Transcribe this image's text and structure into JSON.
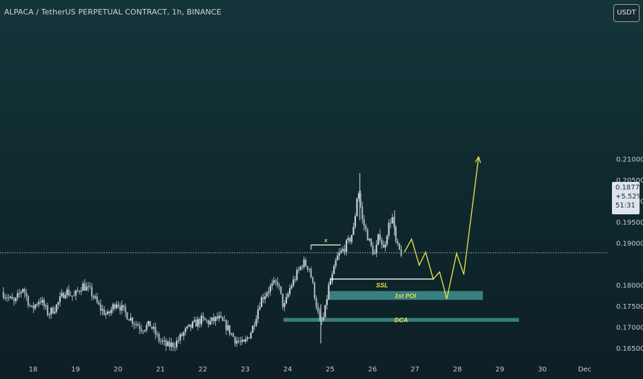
{
  "header": {
    "title": "ALPACA / TetherUS PERPETUAL CONTRACT, 1h, BINANCE",
    "currency_button": "USDT"
  },
  "price_label": {
    "price": "0.18775",
    "change": "+5.52%",
    "countdown": "51:31"
  },
  "colors": {
    "candle": "#c8d2de",
    "candle_wick": "#aeb8c4",
    "zone_fill": "#4aa3a0",
    "annotation": "#e8e04a",
    "level_line": "#ffffff",
    "axis_text": "#c5cad3"
  },
  "chart_data": {
    "type": "candlestick",
    "y_axis": {
      "ticks": [
        0.165,
        0.17,
        0.175,
        0.18,
        0.185,
        0.19,
        0.195,
        0.2,
        0.205,
        0.21
      ],
      "tick_labels": [
        "0.16500",
        "0.17000",
        "0.17500",
        "0.18000",
        "",
        "0.19000",
        "0.19500",
        "0.20000",
        "0.20500",
        "0.21000"
      ],
      "ylim": [
        0.1635,
        0.2145
      ]
    },
    "x_axis": {
      "ticks": [
        18,
        19,
        20,
        21,
        22,
        23,
        24,
        25,
        26,
        27,
        28,
        29,
        30,
        31
      ],
      "tick_labels": [
        "18",
        "19",
        "20",
        "21",
        "22",
        "23",
        "24",
        "25",
        "26",
        "27",
        "28",
        "29",
        "30",
        "Dec"
      ],
      "xlim": [
        17.3,
        32.3
      ]
    },
    "last_price": 0.18775,
    "price_path": [
      [
        17.3,
        0.1785
      ],
      [
        17.6,
        0.1758
      ],
      [
        17.8,
        0.1795
      ],
      [
        18.0,
        0.1742
      ],
      [
        18.2,
        0.1768
      ],
      [
        18.4,
        0.1732
      ],
      [
        18.6,
        0.1752
      ],
      [
        18.8,
        0.1788
      ],
      [
        19.0,
        0.1772
      ],
      [
        19.2,
        0.1801
      ],
      [
        19.4,
        0.1785
      ],
      [
        19.6,
        0.1748
      ],
      [
        19.8,
        0.1728
      ],
      [
        20.0,
        0.1762
      ],
      [
        20.2,
        0.1735
      ],
      [
        20.4,
        0.1715
      ],
      [
        20.6,
        0.1698
      ],
      [
        20.8,
        0.1706
      ],
      [
        21.0,
        0.1672
      ],
      [
        21.2,
        0.1655
      ],
      [
        21.4,
        0.1662
      ],
      [
        21.6,
        0.1688
      ],
      [
        21.8,
        0.1705
      ],
      [
        22.0,
        0.1718
      ],
      [
        22.2,
        0.1712
      ],
      [
        22.4,
        0.1722
      ],
      [
        22.6,
        0.1702
      ],
      [
        22.8,
        0.1672
      ],
      [
        23.0,
        0.1658
      ],
      [
        23.2,
        0.1695
      ],
      [
        23.4,
        0.1765
      ],
      [
        23.6,
        0.1792
      ],
      [
        23.8,
        0.1808
      ],
      [
        23.95,
        0.1745
      ],
      [
        24.1,
        0.1795
      ],
      [
        24.3,
        0.1835
      ],
      [
        24.4,
        0.1855
      ],
      [
        24.55,
        0.1842
      ],
      [
        24.7,
        0.1765
      ],
      [
        24.8,
        0.1708
      ],
      [
        24.9,
        0.1725
      ],
      [
        25.0,
        0.1795
      ],
      [
        25.1,
        0.1822
      ],
      [
        25.2,
        0.1865
      ],
      [
        25.35,
        0.1885
      ],
      [
        25.5,
        0.1908
      ],
      [
        25.6,
        0.1935
      ],
      [
        25.7,
        0.2035
      ],
      [
        25.8,
        0.1955
      ],
      [
        25.9,
        0.1925
      ],
      [
        26.0,
        0.1892
      ],
      [
        26.1,
        0.1872
      ],
      [
        26.2,
        0.1925
      ],
      [
        26.3,
        0.1885
      ],
      [
        26.4,
        0.1935
      ],
      [
        26.5,
        0.1965
      ],
      [
        26.6,
        0.1895
      ],
      [
        26.7,
        0.18775
      ]
    ],
    "annotations": [
      {
        "label": "x",
        "kind": "line",
        "x": [
          24.55,
          25.25
        ],
        "y": 0.1896
      },
      {
        "label": "SSL",
        "kind": "line",
        "x": [
          25.0,
          27.45
        ],
        "y": 0.1815
      },
      {
        "label": "1st POI",
        "kind": "zone",
        "x": [
          24.95,
          28.6
        ],
        "y": [
          0.17655,
          0.17865
        ]
      },
      {
        "label": "DCA",
        "kind": "zone",
        "x": [
          23.9,
          29.45
        ],
        "y": [
          0.17135,
          0.17225
        ]
      }
    ],
    "projection": [
      [
        26.75,
        0.1879
      ],
      [
        26.92,
        0.191
      ],
      [
        27.1,
        0.1848
      ],
      [
        27.25,
        0.1879
      ],
      [
        27.43,
        0.1815
      ],
      [
        27.58,
        0.1832
      ],
      [
        27.75,
        0.1768
      ],
      [
        27.98,
        0.1876
      ],
      [
        28.15,
        0.1826
      ],
      [
        28.5,
        0.2105
      ]
    ]
  }
}
